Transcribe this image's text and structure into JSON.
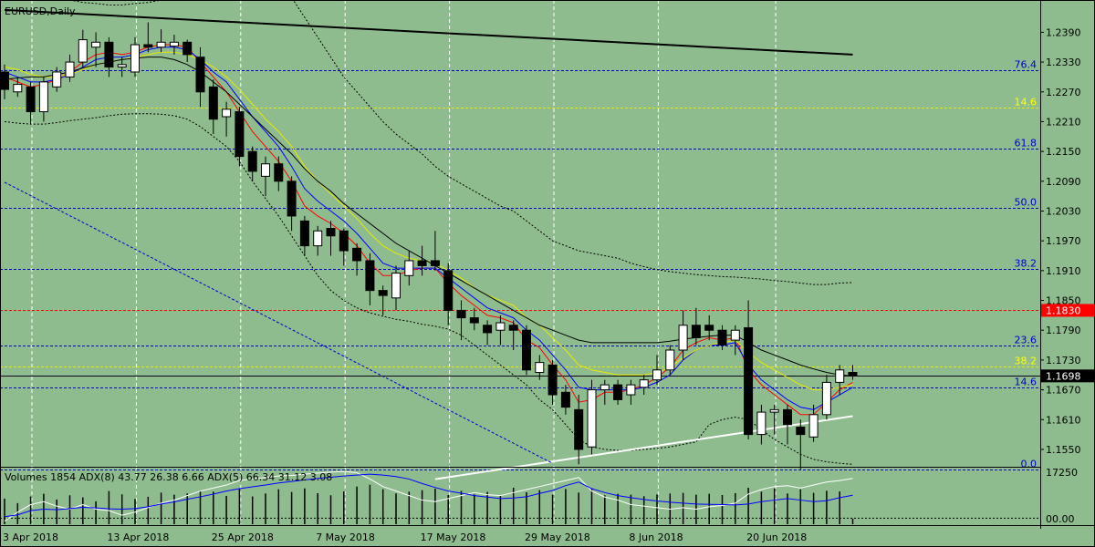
{
  "chart_data": {
    "type": "candlestick",
    "title": "EURUSD,Daily",
    "price_axis": {
      "ylim": [
        1.1515,
        1.2455
      ],
      "ticks": [
        "1.2390",
        "1.2330",
        "1.2270",
        "1.2210",
        "1.2150",
        "1.2090",
        "1.2030",
        "1.1970",
        "1.1910",
        "1.1850",
        "1.1790",
        "1.1730",
        "1.1670",
        "1.1610",
        "1.1550"
      ]
    },
    "current_price": {
      "value": 1.1698,
      "label": "1.1698",
      "color": "#000000"
    },
    "red_level": {
      "value": 1.183,
      "label": "1.1830",
      "color": "#ff0000"
    },
    "fib_levels": [
      {
        "label": "76.4",
        "value": 1.2313,
        "color": "#0000cc"
      },
      {
        "label": "14.6",
        "value": 1.2239,
        "color": "#e8e800"
      },
      {
        "label": "61.8",
        "value": 1.2155,
        "color": "#0000cc"
      },
      {
        "label": "50.0",
        "value": 1.2036,
        "color": "#0000cc"
      },
      {
        "label": "38.2",
        "value": 1.1913,
        "color": "#0000cc"
      },
      {
        "label": "23.6",
        "value": 1.1759,
        "color": "#0000cc"
      },
      {
        "label": "38.2",
        "value": 1.1717,
        "color": "#e8e800"
      },
      {
        "label": "14.6",
        "value": 1.1674,
        "color": "#0000cc"
      },
      {
        "label": "0.0",
        "value": 1.1509,
        "color": "#0000cc"
      }
    ],
    "candles": [
      [
        1.231,
        1.2325,
        1.2255,
        1.2275
      ],
      [
        1.227,
        1.23,
        1.226,
        1.2285
      ],
      [
        1.228,
        1.229,
        1.2205,
        1.223
      ],
      [
        1.223,
        1.23,
        1.221,
        1.229
      ],
      [
        1.228,
        1.232,
        1.227,
        1.231
      ],
      [
        1.23,
        1.2345,
        1.229,
        1.233
      ],
      [
        1.233,
        1.2395,
        1.232,
        1.2375
      ],
      [
        1.236,
        1.239,
        1.232,
        1.237
      ],
      [
        1.237,
        1.238,
        1.23,
        1.232
      ],
      [
        1.232,
        1.234,
        1.23,
        1.2325
      ],
      [
        1.231,
        1.238,
        1.23,
        1.2365
      ],
      [
        1.2365,
        1.241,
        1.235,
        1.236
      ],
      [
        1.236,
        1.2396,
        1.235,
        1.237
      ],
      [
        1.2362,
        1.2385,
        1.2345,
        1.237
      ],
      [
        1.237,
        1.2375,
        1.233,
        1.2345
      ],
      [
        1.234,
        1.236,
        1.224,
        1.227
      ],
      [
        1.228,
        1.2295,
        1.2185,
        1.2215
      ],
      [
        1.222,
        1.225,
        1.218,
        1.2235
      ],
      [
        1.223,
        1.224,
        1.212,
        1.214
      ],
      [
        1.215,
        1.216,
        1.209,
        1.211
      ],
      [
        1.21,
        1.214,
        1.206,
        1.2125
      ],
      [
        1.2125,
        1.214,
        1.207,
        1.209
      ],
      [
        1.209,
        1.21,
        1.199,
        1.202
      ],
      [
        1.201,
        1.202,
        1.194,
        1.196
      ],
      [
        1.196,
        1.2,
        1.194,
        1.199
      ],
      [
        1.1995,
        1.201,
        1.194,
        1.198
      ],
      [
        1.199,
        1.1995,
        1.192,
        1.195
      ],
      [
        1.1955,
        1.1965,
        1.19,
        1.193
      ],
      [
        1.193,
        1.1945,
        1.184,
        1.187
      ],
      [
        1.187,
        1.188,
        1.182,
        1.186
      ],
      [
        1.1855,
        1.192,
        1.183,
        1.1905
      ],
      [
        1.19,
        1.195,
        1.188,
        1.193
      ],
      [
        1.193,
        1.196,
        1.19,
        1.192
      ],
      [
        1.193,
        1.199,
        1.191,
        1.192
      ],
      [
        1.191,
        1.1925,
        1.18,
        1.183
      ],
      [
        1.183,
        1.185,
        1.177,
        1.1815
      ],
      [
        1.1815,
        1.1835,
        1.179,
        1.1805
      ],
      [
        1.18,
        1.181,
        1.176,
        1.1785
      ],
      [
        1.179,
        1.182,
        1.176,
        1.1805
      ],
      [
        1.18,
        1.181,
        1.175,
        1.179
      ],
      [
        1.179,
        1.18,
        1.17,
        1.171
      ],
      [
        1.1705,
        1.174,
        1.169,
        1.1725
      ],
      [
        1.172,
        1.173,
        1.164,
        1.166
      ],
      [
        1.1665,
        1.168,
        1.162,
        1.1635
      ],
      [
        1.163,
        1.166,
        1.152,
        1.155
      ],
      [
        1.1555,
        1.169,
        1.154,
        1.167
      ],
      [
        1.167,
        1.169,
        1.164,
        1.168
      ],
      [
        1.168,
        1.169,
        1.164,
        1.165
      ],
      [
        1.166,
        1.169,
        1.164,
        1.168
      ],
      [
        1.1675,
        1.17,
        1.166,
        1.169
      ],
      [
        1.169,
        1.174,
        1.168,
        1.171
      ],
      [
        1.171,
        1.176,
        1.17,
        1.175
      ],
      [
        1.175,
        1.183,
        1.173,
        1.18
      ],
      [
        1.18,
        1.1835,
        1.176,
        1.1775
      ],
      [
        1.18,
        1.182,
        1.177,
        1.179
      ],
      [
        1.179,
        1.18,
        1.175,
        1.176
      ],
      [
        1.177,
        1.18,
        1.174,
        1.179
      ],
      [
        1.1795,
        1.185,
        1.157,
        1.158
      ],
      [
        1.158,
        1.164,
        1.156,
        1.1625
      ],
      [
        1.1625,
        1.164,
        1.158,
        1.163
      ],
      [
        1.163,
        1.164,
        1.156,
        1.16
      ],
      [
        1.1595,
        1.161,
        1.151,
        1.158
      ],
      [
        1.1575,
        1.164,
        1.1565,
        1.162
      ],
      [
        1.162,
        1.17,
        1.161,
        1.1685
      ],
      [
        1.1685,
        1.172,
        1.166,
        1.171
      ],
      [
        1.1705,
        1.172,
        1.169,
        1.1698
      ]
    ],
    "moving_averages": [
      {
        "color": "#ff0000",
        "values": [
          1.23,
          1.229,
          1.228,
          1.2285,
          1.2295,
          1.231,
          1.233,
          1.2345,
          1.235,
          1.2345,
          1.235,
          1.236,
          1.2365,
          1.2365,
          1.236,
          1.233,
          1.23,
          1.227,
          1.223,
          1.219,
          1.216,
          1.213,
          1.209,
          1.204,
          1.202,
          1.2005,
          1.1985,
          1.196,
          1.1925,
          1.19,
          1.19,
          1.191,
          1.1915,
          1.1915,
          1.1885,
          1.186,
          1.184,
          1.182,
          1.1815,
          1.1805,
          1.177,
          1.1755,
          1.172,
          1.169,
          1.1645,
          1.165,
          1.1665,
          1.1665,
          1.167,
          1.168,
          1.1695,
          1.1715,
          1.175,
          1.1765,
          1.1775,
          1.177,
          1.1775,
          1.171,
          1.168,
          1.166,
          1.164,
          1.162,
          1.162,
          1.1645,
          1.167,
          1.1685
        ]
      },
      {
        "color": "#0000ff",
        "values": [
          1.231,
          1.23,
          1.229,
          1.229,
          1.2295,
          1.2305,
          1.232,
          1.2335,
          1.234,
          1.234,
          1.2345,
          1.2355,
          1.236,
          1.236,
          1.2355,
          1.2335,
          1.231,
          1.229,
          1.2255,
          1.222,
          1.219,
          1.216,
          1.212,
          1.2075,
          1.205,
          1.203,
          1.201,
          1.1985,
          1.1955,
          1.1925,
          1.1915,
          1.1915,
          1.1915,
          1.1915,
          1.1895,
          1.1875,
          1.1855,
          1.1835,
          1.1825,
          1.1815,
          1.179,
          1.177,
          1.174,
          1.171,
          1.1675,
          1.167,
          1.167,
          1.167,
          1.167,
          1.1675,
          1.1685,
          1.17,
          1.173,
          1.175,
          1.176,
          1.176,
          1.1765,
          1.172,
          1.169,
          1.167,
          1.165,
          1.1635,
          1.163,
          1.1645,
          1.166,
          1.1675
        ]
      },
      {
        "color": "#e8e800",
        "values": [
          1.232,
          1.2315,
          1.2305,
          1.23,
          1.23,
          1.2305,
          1.2315,
          1.2325,
          1.233,
          1.2335,
          1.234,
          1.2345,
          1.235,
          1.235,
          1.2345,
          1.2335,
          1.232,
          1.23,
          1.2275,
          1.2245,
          1.2215,
          1.219,
          1.216,
          1.212,
          1.209,
          1.2065,
          1.204,
          1.2015,
          1.1985,
          1.196,
          1.1945,
          1.1935,
          1.193,
          1.1925,
          1.191,
          1.1895,
          1.1875,
          1.186,
          1.185,
          1.184,
          1.1815,
          1.18,
          1.1775,
          1.175,
          1.172,
          1.171,
          1.1705,
          1.17,
          1.17,
          1.17,
          1.1705,
          1.1715,
          1.1735,
          1.175,
          1.176,
          1.1765,
          1.177,
          1.1745,
          1.1725,
          1.171,
          1.1695,
          1.168,
          1.167,
          1.167,
          1.1675,
          1.168
        ]
      },
      {
        "color": "#000000",
        "values": [
          1.2295,
          1.2298,
          1.23,
          1.23,
          1.2305,
          1.231,
          1.2318,
          1.2325,
          1.233,
          1.2335,
          1.2338,
          1.234,
          1.234,
          1.2335,
          1.2325,
          1.231,
          1.229,
          1.227,
          1.2245,
          1.222,
          1.2195,
          1.217,
          1.2145,
          1.2115,
          1.209,
          1.207,
          1.2045,
          1.2025,
          1.2005,
          1.1985,
          1.1965,
          1.195,
          1.1935,
          1.192,
          1.1905,
          1.189,
          1.1875,
          1.186,
          1.1845,
          1.183,
          1.1815,
          1.18,
          1.179,
          1.178,
          1.177,
          1.1765,
          1.1765,
          1.1765,
          1.1765,
          1.1765,
          1.1765,
          1.1768,
          1.1772,
          1.1775,
          1.1778,
          1.178,
          1.178,
          1.1765,
          1.175,
          1.174,
          1.173,
          1.172,
          1.1712,
          1.1705,
          1.17,
          1.1698
        ]
      }
    ],
    "bollinger_upper": [
      1.25,
      1.249,
      1.248,
      1.247,
      1.246,
      1.2455,
      1.245,
      1.2448,
      1.2445,
      1.2445,
      1.2448,
      1.245,
      1.2455,
      1.246,
      1.2465,
      1.248,
      1.25,
      1.252,
      1.254,
      1.2545,
      1.253,
      1.25,
      1.246,
      1.242,
      1.238,
      1.234,
      1.23,
      1.227,
      1.224,
      1.221,
      1.2185,
      1.2165,
      1.2145,
      1.212,
      1.21,
      1.2085,
      1.207,
      1.2055,
      1.204,
      1.203,
      1.201,
      1.199,
      1.197,
      1.196,
      1.195,
      1.1945,
      1.194,
      1.1935,
      1.1925,
      1.1918,
      1.1912,
      1.1908,
      1.1905,
      1.1902,
      1.19,
      1.1898,
      1.1897,
      1.1895,
      1.1893,
      1.189,
      1.1888,
      1.1885,
      1.1882,
      1.1882,
      1.1885,
      1.1886
    ],
    "bollinger_lower": [
      1.221,
      1.2207,
      1.2205,
      1.2205,
      1.2208,
      1.2212,
      1.2215,
      1.2218,
      1.2222,
      1.2225,
      1.2226,
      1.2226,
      1.2225,
      1.2222,
      1.2215,
      1.22,
      1.218,
      1.216,
      1.213,
      1.209,
      1.2055,
      1.202,
      1.198,
      1.194,
      1.19,
      1.187,
      1.185,
      1.1835,
      1.1825,
      1.1818,
      1.1812,
      1.1808,
      1.1802,
      1.1798,
      1.1792,
      1.178,
      1.176,
      1.174,
      1.172,
      1.17,
      1.168,
      1.165,
      1.163,
      1.16,
      1.157,
      1.1555,
      1.155,
      1.1548,
      1.1548,
      1.155,
      1.1552,
      1.1555,
      1.156,
      1.1565,
      1.16,
      1.161,
      1.1615,
      1.161,
      1.159,
      1.157,
      1.1555,
      1.154,
      1.153,
      1.1525,
      1.1522,
      1.152
    ],
    "trendlines": [
      {
        "color": "#000000",
        "from": [
          0,
          1.2435
        ],
        "to": [
          65,
          1.2345
        ]
      },
      {
        "color": "#ffffff",
        "from": [
          33,
          1.149
        ],
        "to": [
          65,
          1.1617
        ]
      },
      {
        "color": "#0000cc",
        "from": [
          0,
          1.2088
        ],
        "to": [
          42,
          1.1522
        ]
      }
    ],
    "volume_panel": {
      "label": "Volumes 1854 ADX(8) 43.77 26.38 6.66 ADX(5) 66.34 31.12 3.08",
      "ticks": [
        "17250",
        "00.00"
      ],
      "ymax": 17250,
      "volumes": [
        8500,
        7000,
        9200,
        10100,
        8200,
        9600,
        8900,
        7600,
        11000,
        9900,
        8400,
        9100,
        10500,
        9800,
        10200,
        11200,
        10800,
        9400,
        11800,
        9200,
        10200,
        11600,
        10700,
        11900,
        10300,
        9600,
        10900,
        12500,
        13100,
        11600,
        10200,
        10800,
        11300,
        11800,
        9700,
        11100,
        9900,
        10700,
        9400,
        12100,
        10600,
        11300,
        9800,
        11700,
        10500,
        11900,
        9600,
        10100,
        9800,
        9300,
        9900,
        10200,
        10400,
        9800,
        10100,
        9700,
        10300,
        12100,
        10800,
        11900,
        10200,
        11600,
        10400,
        11100,
        10900,
        1854
      ],
      "adx_blue": [
        2500,
        3100,
        4500,
        5000,
        4800,
        5200,
        5600,
        5400,
        5100,
        5000,
        5200,
        5800,
        6700,
        7400,
        8300,
        9100,
        10000,
        11000,
        11800,
        12400,
        13000,
        13700,
        14200,
        14700,
        15200,
        15600,
        16000,
        16300,
        16600,
        16300,
        15800,
        15000,
        13500,
        12200,
        11000,
        10300,
        9500,
        9000,
        8500,
        8700,
        9100,
        10200,
        11200,
        12800,
        14000,
        11800,
        10500,
        9500,
        8800,
        8200,
        7700,
        7300,
        7000,
        6700,
        6600,
        6500,
        6400,
        6700,
        7500,
        8000,
        8500,
        8000,
        7500,
        7800,
        8800,
        9600
      ],
      "adx_white": [
        1000,
        4000,
        6500,
        7500,
        6000,
        5000,
        6500,
        5000,
        4500,
        3000,
        4000,
        5500,
        7000,
        8000,
        9500,
        11000,
        12000,
        13000,
        14500,
        15000,
        15500,
        16000,
        16200,
        16600,
        17000,
        17300,
        17500,
        17100,
        15000,
        12500,
        11000,
        9500,
        8000,
        7500,
        8500,
        9500,
        10500,
        9800,
        9500,
        10500,
        11500,
        12500,
        13500,
        14500,
        15500,
        11000,
        9000,
        8000,
        6500,
        6000,
        5500,
        5000,
        5500,
        5000,
        5800,
        6200,
        7000,
        10000,
        11500,
        12500,
        12800,
        12000,
        13000,
        14000,
        14500,
        15200
      ],
      "adx_dotted_level": 2000
    },
    "x_axis": {
      "labels": [
        {
          "text": "3 Apr 2018",
          "index": 0
        },
        {
          "text": "13 Apr 2018",
          "index": 8
        },
        {
          "text": "25 Apr 2018",
          "index": 16
        },
        {
          "text": "7 May 2018",
          "index": 24
        },
        {
          "text": "17 May 2018",
          "index": 32
        },
        {
          "text": "29 May 2018",
          "index": 40
        },
        {
          "text": "8 Jun 2018",
          "index": 48
        },
        {
          "text": "20 Jun 2018",
          "index": 57
        }
      ]
    },
    "colors": {
      "background": "#8fbc8f",
      "grid": "#ffffff",
      "bull": "#ffffff",
      "bear": "#000000"
    }
  }
}
